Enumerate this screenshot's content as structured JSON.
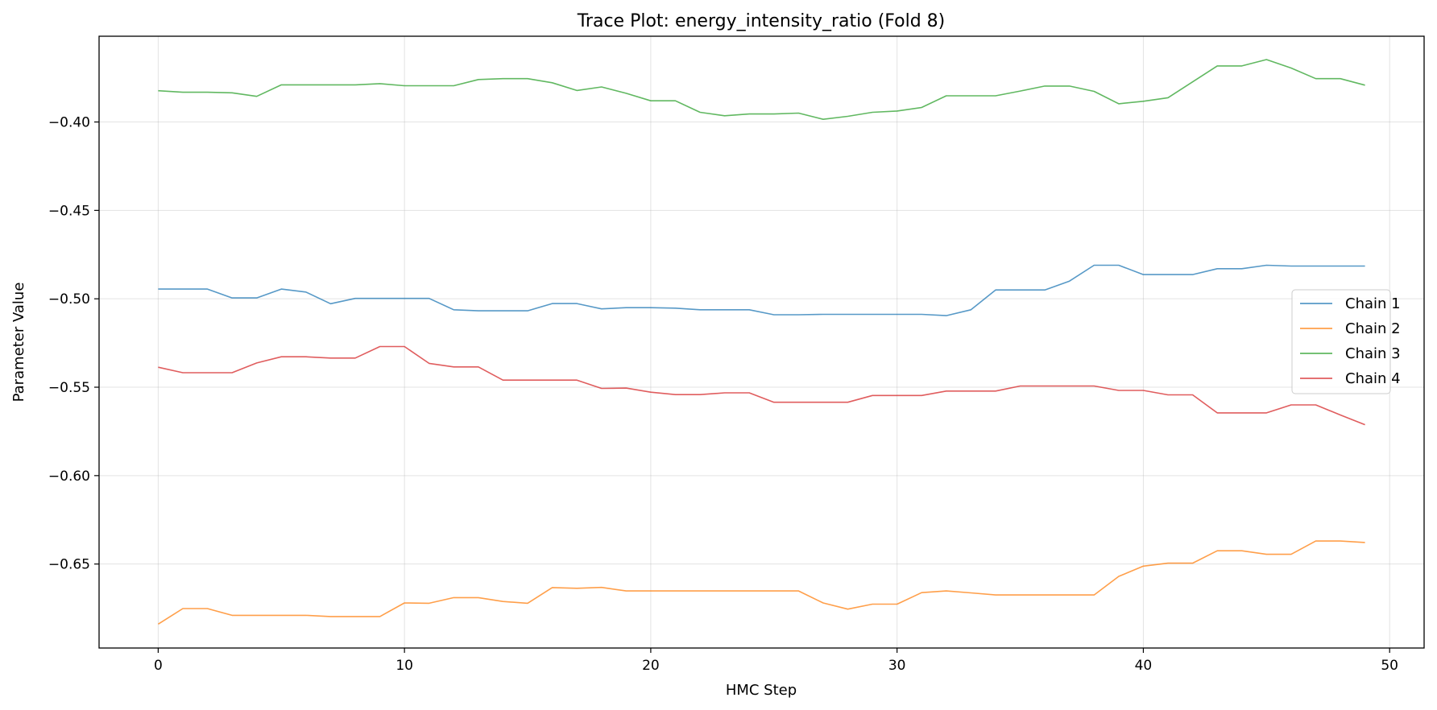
{
  "chart_data": {
    "type": "line",
    "title": "Trace Plot: energy_intensity_ratio (Fold 8)",
    "xlabel": "HMC Step",
    "ylabel": "Parameter Value",
    "xlim": [
      -2.4,
      51.4
    ],
    "ylim": [
      -0.6975,
      -0.3515
    ],
    "xticks": [
      0,
      10,
      20,
      30,
      40,
      50
    ],
    "yticks": [
      -0.4,
      -0.45,
      -0.5,
      -0.55,
      -0.6,
      -0.65
    ],
    "ytick_labels": [
      "−0.40",
      "−0.45",
      "−0.50",
      "−0.55",
      "−0.60",
      "−0.65"
    ],
    "grid": true,
    "legend_position": "center-right",
    "x": [
      0,
      1,
      2,
      3,
      4,
      5,
      6,
      7,
      8,
      9,
      10,
      11,
      12,
      13,
      14,
      15,
      16,
      17,
      18,
      19,
      20,
      21,
      22,
      23,
      24,
      25,
      26,
      27,
      28,
      29,
      30,
      31,
      32,
      33,
      34,
      35,
      36,
      37,
      38,
      39,
      40,
      41,
      42,
      43,
      44,
      45,
      46,
      47,
      48,
      49
    ],
    "series": [
      {
        "name": "Chain 1",
        "color": "#1f77b4",
        "values": [
          -0.4945,
          -0.4945,
          -0.4945,
          -0.4995,
          -0.4995,
          -0.4945,
          -0.4962,
          -0.5028,
          -0.4998,
          -0.4998,
          -0.4998,
          -0.4998,
          -0.5062,
          -0.5068,
          -0.5068,
          -0.5068,
          -0.5027,
          -0.5027,
          -0.5057,
          -0.505,
          -0.505,
          -0.5053,
          -0.5062,
          -0.5062,
          -0.5062,
          -0.509,
          -0.509,
          -0.5088,
          -0.5088,
          -0.5088,
          -0.5088,
          -0.5088,
          -0.5095,
          -0.5062,
          -0.495,
          -0.495,
          -0.495,
          -0.49,
          -0.481,
          -0.481,
          -0.4863,
          -0.4863,
          -0.4863,
          -0.483,
          -0.483,
          -0.481,
          -0.4815,
          -0.4815,
          -0.4815,
          -0.4815
        ]
      },
      {
        "name": "Chain 2",
        "color": "#ff7f0e",
        "values": [
          -0.684,
          -0.6752,
          -0.6752,
          -0.679,
          -0.679,
          -0.679,
          -0.679,
          -0.6797,
          -0.6797,
          -0.6797,
          -0.672,
          -0.6722,
          -0.669,
          -0.669,
          -0.6712,
          -0.6722,
          -0.6633,
          -0.6637,
          -0.6632,
          -0.6652,
          -0.6652,
          -0.6652,
          -0.6652,
          -0.6652,
          -0.6652,
          -0.6652,
          -0.6652,
          -0.672,
          -0.6755,
          -0.6727,
          -0.6727,
          -0.6662,
          -0.6652,
          -0.6663,
          -0.6675,
          -0.6675,
          -0.6675,
          -0.6675,
          -0.6675,
          -0.657,
          -0.6512,
          -0.6495,
          -0.6495,
          -0.6425,
          -0.6425,
          -0.6445,
          -0.6445,
          -0.637,
          -0.637,
          -0.6378
        ]
      },
      {
        "name": "Chain 3",
        "color": "#2ca02c",
        "values": [
          -0.3823,
          -0.3832,
          -0.3832,
          -0.3835,
          -0.3855,
          -0.379,
          -0.379,
          -0.379,
          -0.379,
          -0.3783,
          -0.3795,
          -0.3795,
          -0.3795,
          -0.376,
          -0.3755,
          -0.3755,
          -0.3778,
          -0.3822,
          -0.3802,
          -0.3838,
          -0.388,
          -0.388,
          -0.3945,
          -0.3965,
          -0.3955,
          -0.3955,
          -0.395,
          -0.3985,
          -0.3968,
          -0.3945,
          -0.3938,
          -0.3918,
          -0.3852,
          -0.3852,
          -0.3852,
          -0.3825,
          -0.3797,
          -0.3797,
          -0.3827,
          -0.3897,
          -0.3883,
          -0.3863,
          -0.3773,
          -0.3683,
          -0.3683,
          -0.3647,
          -0.3695,
          -0.3755,
          -0.3755,
          -0.3792
        ]
      },
      {
        "name": "Chain 4",
        "color": "#d62728",
        "values": [
          -0.5387,
          -0.5418,
          -0.5418,
          -0.5418,
          -0.5363,
          -0.5328,
          -0.5328,
          -0.5335,
          -0.5335,
          -0.527,
          -0.527,
          -0.5365,
          -0.5385,
          -0.5385,
          -0.546,
          -0.546,
          -0.546,
          -0.546,
          -0.5507,
          -0.5505,
          -0.5528,
          -0.5542,
          -0.5542,
          -0.5532,
          -0.5532,
          -0.5585,
          -0.5585,
          -0.5585,
          -0.5585,
          -0.5547,
          -0.5547,
          -0.5547,
          -0.5522,
          -0.5522,
          -0.5522,
          -0.5493,
          -0.5493,
          -0.5493,
          -0.5493,
          -0.5518,
          -0.5518,
          -0.5543,
          -0.5543,
          -0.5645,
          -0.5645,
          -0.5645,
          -0.56,
          -0.56,
          -0.5657,
          -0.5712
        ]
      }
    ]
  }
}
